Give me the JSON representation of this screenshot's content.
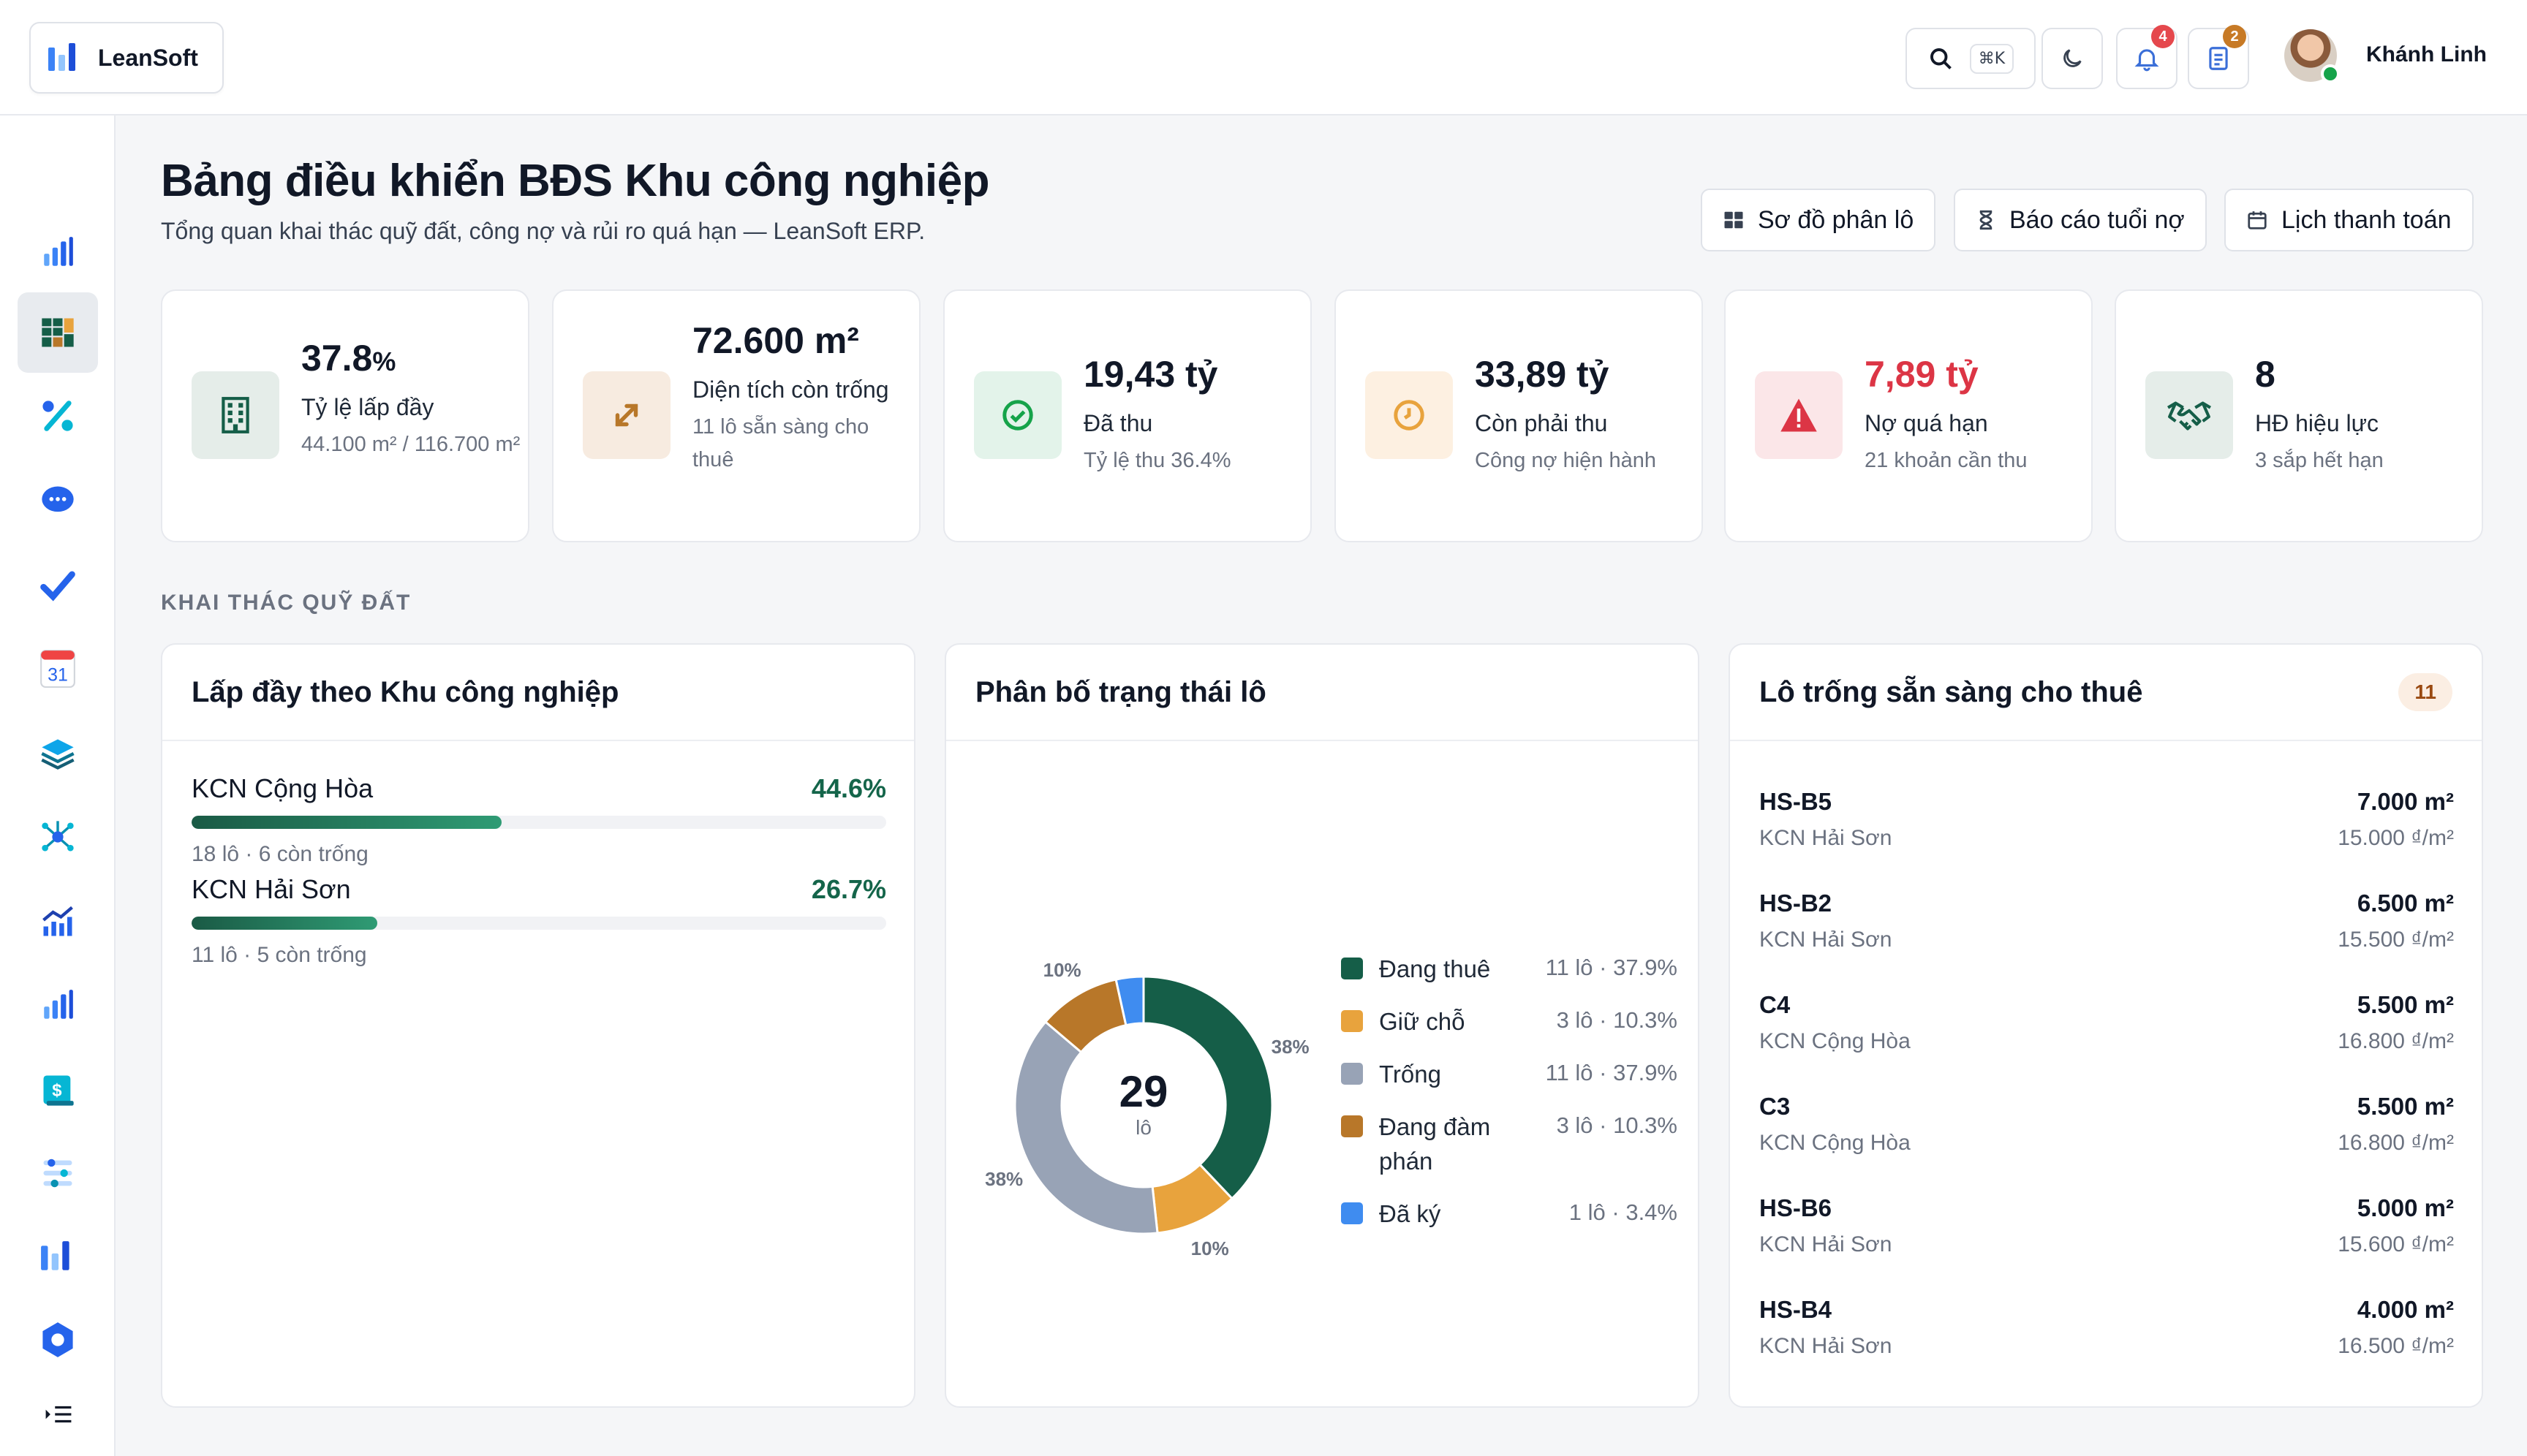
{
  "app": {
    "name": "LeanSoft"
  },
  "topbar": {
    "shortcut": "⌘K",
    "notifications_count": "4",
    "tasks_count": "2",
    "user_name": "Khánh Linh"
  },
  "page": {
    "title": "Bảng điều khiển BĐS Khu công nghiệp",
    "subtitle": "Tổng quan khai thác quỹ đất, công nợ và rủi ro quá hạn — LeanSoft ERP.",
    "actions": [
      "Sơ đồ phân lô",
      "Báo cáo tuổi nợ",
      "Lịch thanh toán"
    ]
  },
  "kpis": [
    {
      "value": "37.8",
      "unit": "%",
      "label": "Tỷ lệ lấp đầy",
      "sub": "44.100 m² / 116.700 m²",
      "icon": "building-icon"
    },
    {
      "value": "72.600 m²",
      "label": "Diện tích còn trống",
      "sub": "11 lô sẵn sàng cho thuê",
      "icon": "expand-arrows-icon"
    },
    {
      "value": "19,43 tỷ",
      "label": "Đã thu",
      "sub": "Tỷ lệ thu 36.4%",
      "icon": "check-circle-icon"
    },
    {
      "value": "33,89 tỷ",
      "label": "Còn phải thu",
      "sub": "Công nợ hiện hành",
      "icon": "clock-icon"
    },
    {
      "value": "7,89 tỷ",
      "label": "Nợ quá hạn",
      "sub": "21 khoản cần thu",
      "icon": "warning-icon",
      "value_color": "#dc3545"
    },
    {
      "value": "8",
      "label": "HĐ hiệu lực",
      "sub": "3 sắp hết hạn",
      "icon": "handshake-icon"
    }
  ],
  "section": {
    "label": "KHAI THÁC QUỸ ĐẤT"
  },
  "occupancy": {
    "title": "Lấp đầy theo Khu công nghiệp",
    "rows": [
      {
        "name": "KCN Cộng Hòa",
        "pct_label": "44.6%",
        "pct": 44.6,
        "sub": "18 lô · 6 còn trống"
      },
      {
        "name": "KCN Hải Sơn",
        "pct_label": "26.7%",
        "pct": 26.7,
        "sub": "11 lô · 5 còn trống"
      }
    ]
  },
  "status": {
    "title": "Phân bố trạng thái lô",
    "center_value": "29",
    "center_unit": "lô"
  },
  "chart_data": {
    "type": "pie",
    "categories": [
      "Đang thuê",
      "Giữ chỗ",
      "Trống",
      "Đang đàm phán",
      "Đã ký"
    ],
    "values": [
      11,
      3,
      11,
      3,
      1
    ],
    "value_labels": [
      "11 lô · 37.9%",
      "3 lô · 10.3%",
      "11 lô · 37.9%",
      "3 lô · 10.3%",
      "1 lô · 3.4%"
    ],
    "slice_labels": [
      "38%",
      "10%",
      "38%",
      "10%",
      ""
    ],
    "colors": [
      "#155e48",
      "#e8a33d",
      "#98a3b6",
      "#b87729",
      "#3f8cf0"
    ],
    "donut": true,
    "legend": "right"
  },
  "lots": {
    "title": "Lô trống sẵn sàng cho thuê",
    "count": "11",
    "rows": [
      {
        "code": "HS-B5",
        "kcn": "KCN Hải Sơn",
        "area": "7.000 m²",
        "price": "15.000 ₫/m²"
      },
      {
        "code": "HS-B2",
        "kcn": "KCN Hải Sơn",
        "area": "6.500 m²",
        "price": "15.500 ₫/m²"
      },
      {
        "code": "C4",
        "kcn": "KCN Cộng Hòa",
        "area": "5.500 m²",
        "price": "16.800 ₫/m²"
      },
      {
        "code": "C3",
        "kcn": "KCN Cộng Hòa",
        "area": "5.500 m²",
        "price": "16.800 ₫/m²"
      },
      {
        "code": "HS-B6",
        "kcn": "KCN Hải Sơn",
        "area": "5.000 m²",
        "price": "15.600 ₫/m²"
      },
      {
        "code": "HS-B4",
        "kcn": "KCN Hải Sơn",
        "area": "4.000 m²",
        "price": "16.500 ₫/m²"
      }
    ]
  }
}
